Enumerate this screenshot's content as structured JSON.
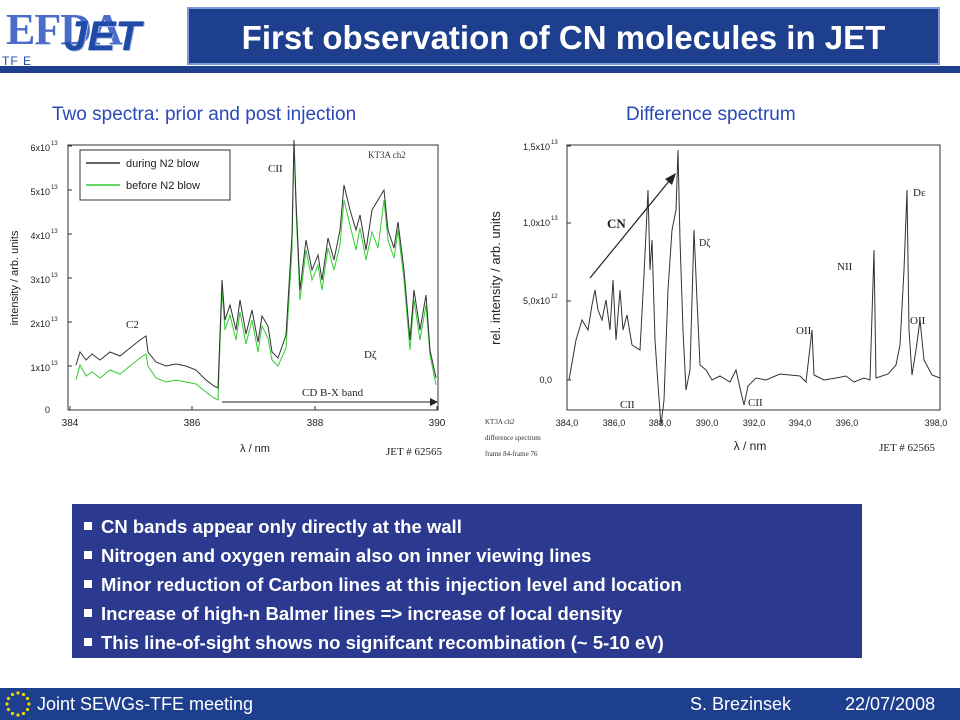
{
  "logo": {
    "efda": "EFDA",
    "jet": "JET",
    "tfe": "TF E"
  },
  "title": "First observation of CN molecules in JET",
  "left_caption": "Two spectra: prior and post injection",
  "right_caption": "Difference spectrum",
  "left_chart": {
    "ylabel": "intensity / arb. units",
    "xlabel": "λ / nm",
    "xticks": [
      "384",
      "386",
      "388",
      "390"
    ],
    "yticks": [
      "0",
      "1x10",
      "2x10",
      "3x10",
      "4x10",
      "5x10",
      "6x10"
    ],
    "ytick_exp": "13",
    "legend": [
      "during N2 blow",
      "before N2 blow"
    ],
    "tag_top": "KT3A ch2",
    "shot": "JET # 62565",
    "labels": {
      "cii": "CII",
      "c2": "C2",
      "dz": "Dζ",
      "band": "CD B-X band"
    },
    "colors": {
      "during": "#333333",
      "before": "#33cc33"
    }
  },
  "right_chart": {
    "ylabel": "rel. intensity / arb. units",
    "xlabel": "λ / nm",
    "xticks": [
      "384,0",
      "386,0",
      "388,0",
      "390,0",
      "392,0",
      "394,0",
      "396,0",
      "398,0"
    ],
    "yticks": [
      "0,0",
      "5,0x10",
      "1,0x10",
      "1,5x10"
    ],
    "ytick_exps": [
      "",
      "12",
      "13",
      "13"
    ],
    "tag_lines": [
      "KT3A ch2",
      "difference spectrum",
      "frame 84-frame 76"
    ],
    "shot": "JET # 62565",
    "labels": {
      "cn": "CN",
      "dz": "Dζ",
      "cii1": "CII",
      "cii2": "CII",
      "oii1": "OII",
      "oii2": "OII",
      "nii": "NII",
      "de": "Dε"
    }
  },
  "bullets": [
    "CN bands appear only directly at the wall",
    "Nitrogen and oxygen remain also on inner viewing lines",
    "Minor reduction of Carbon lines at this injection level and location",
    "Increase of high-n Balmer lines => increase of local density",
    "This line-of-sight shows no signifcant recombination (~ 5-10 eV)"
  ],
  "footer": {
    "meeting": "Joint SEWGs-TFE meeting",
    "author": "S. Brezinsek",
    "date": "22/07/2008"
  }
}
